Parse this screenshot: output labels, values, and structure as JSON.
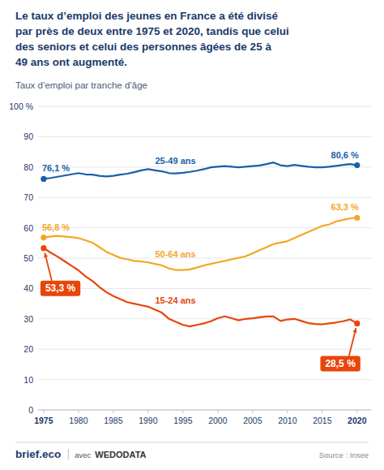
{
  "chart_data": {
    "type": "line",
    "title": "Le taux d’emploi des jeunes en France a été divisé\npar près de deux entre 1975 et 2020, tandis que celui\ndes seniors et celui des personnes âgées de 25 à\n49 ans ont augmenté.",
    "subtitle": "Taux d’emploi par tranche d’âge",
    "source": "Source : Insee",
    "annotations": [
      "brief.eco",
      "avec",
      "WEDODATA"
    ],
    "x": [
      1975,
      1976,
      1977,
      1978,
      1979,
      1980,
      1981,
      1982,
      1983,
      1984,
      1985,
      1986,
      1987,
      1988,
      1989,
      1990,
      1991,
      1992,
      1993,
      1994,
      1995,
      1996,
      1997,
      1998,
      1999,
      2000,
      2001,
      2002,
      2003,
      2004,
      2005,
      2006,
      2007,
      2008,
      2009,
      2010,
      2011,
      2012,
      2013,
      2014,
      2015,
      2016,
      2017,
      2018,
      2019,
      2020
    ],
    "series": [
      {
        "name": "25-49 ans",
        "color": "#1a5fa8",
        "values": [
          76.1,
          76.4,
          76.8,
          77.2,
          77.6,
          78.0,
          77.6,
          77.5,
          77.1,
          76.9,
          77.1,
          77.5,
          77.8,
          78.3,
          78.9,
          79.3,
          78.9,
          78.6,
          78.0,
          77.9,
          78.1,
          78.4,
          78.8,
          79.3,
          79.9,
          80.1,
          80.3,
          80.1,
          79.9,
          80.1,
          80.3,
          80.5,
          81.0,
          81.5,
          80.6,
          80.3,
          80.7,
          80.4,
          80.1,
          79.9,
          79.9,
          80.1,
          80.4,
          80.7,
          81.0,
          80.6
        ],
        "value_labels": [
          "76,1 %",
          null,
          null,
          null,
          null,
          null,
          null,
          null,
          null,
          null,
          null,
          null,
          null,
          null,
          null,
          null,
          null,
          null,
          null,
          null,
          null,
          null,
          null,
          null,
          null,
          null,
          null,
          null,
          null,
          null,
          null,
          null,
          null,
          null,
          null,
          null,
          null,
          null,
          null,
          null,
          null,
          null,
          null,
          null,
          null,
          "80,6 %"
        ]
      },
      {
        "name": "50-64 ans",
        "color": "#f5a623",
        "values": [
          56.8,
          57.1,
          57.3,
          57.1,
          56.9,
          56.6,
          55.9,
          55.1,
          53.6,
          52.1,
          51.1,
          50.1,
          49.6,
          49.1,
          48.9,
          48.6,
          48.1,
          47.6,
          46.6,
          46.1,
          46.1,
          46.3,
          46.9,
          47.6,
          48.1,
          48.6,
          49.1,
          49.6,
          50.1,
          50.6,
          51.6,
          52.6,
          53.6,
          54.6,
          55.1,
          55.6,
          56.6,
          57.6,
          58.6,
          59.6,
          60.6,
          61.1,
          62.1,
          62.6,
          63.1,
          63.3
        ],
        "value_labels": [
          "56,8 %",
          null,
          null,
          null,
          null,
          null,
          null,
          null,
          null,
          null,
          null,
          null,
          null,
          null,
          null,
          null,
          null,
          null,
          null,
          null,
          null,
          null,
          null,
          null,
          null,
          null,
          null,
          null,
          null,
          null,
          null,
          null,
          null,
          null,
          null,
          null,
          null,
          null,
          null,
          null,
          null,
          null,
          null,
          null,
          null,
          "63,3 %"
        ]
      },
      {
        "name": "15-24 ans",
        "color": "#e8450a",
        "values": [
          53.3,
          51.8,
          50.5,
          49.0,
          47.5,
          46.0,
          44.0,
          42.5,
          40.5,
          38.8,
          37.5,
          36.5,
          35.5,
          35.0,
          34.5,
          34.0,
          33.0,
          32.0,
          30.0,
          29.0,
          28.0,
          27.5,
          28.0,
          28.5,
          29.2,
          30.2,
          30.8,
          30.2,
          29.5,
          30.0,
          30.2,
          30.5,
          30.8,
          30.8,
          29.3,
          29.8,
          30.0,
          29.3,
          28.6,
          28.3,
          28.2,
          28.5,
          28.8,
          29.2,
          29.8,
          28.5
        ],
        "value_labels": [
          "53,3 %",
          null,
          null,
          null,
          null,
          null,
          null,
          null,
          null,
          null,
          null,
          null,
          null,
          null,
          null,
          null,
          null,
          null,
          null,
          null,
          null,
          null,
          null,
          null,
          null,
          null,
          null,
          null,
          null,
          null,
          null,
          null,
          null,
          null,
          null,
          null,
          null,
          null,
          null,
          null,
          null,
          null,
          null,
          null,
          null,
          "28,5 %"
        ]
      }
    ],
    "xlim": [
      1974.2,
      2022
    ],
    "xticks": [
      1975,
      1980,
      1985,
      1990,
      1995,
      2000,
      2005,
      2010,
      2015,
      2020
    ],
    "ylim": [
      0,
      100
    ],
    "yticks": [
      0,
      10,
      20,
      30,
      40,
      50,
      60,
      70,
      80,
      90,
      {
        "value": 100,
        "label": "100 %"
      }
    ],
    "grid": true,
    "data_labels": true
  }
}
